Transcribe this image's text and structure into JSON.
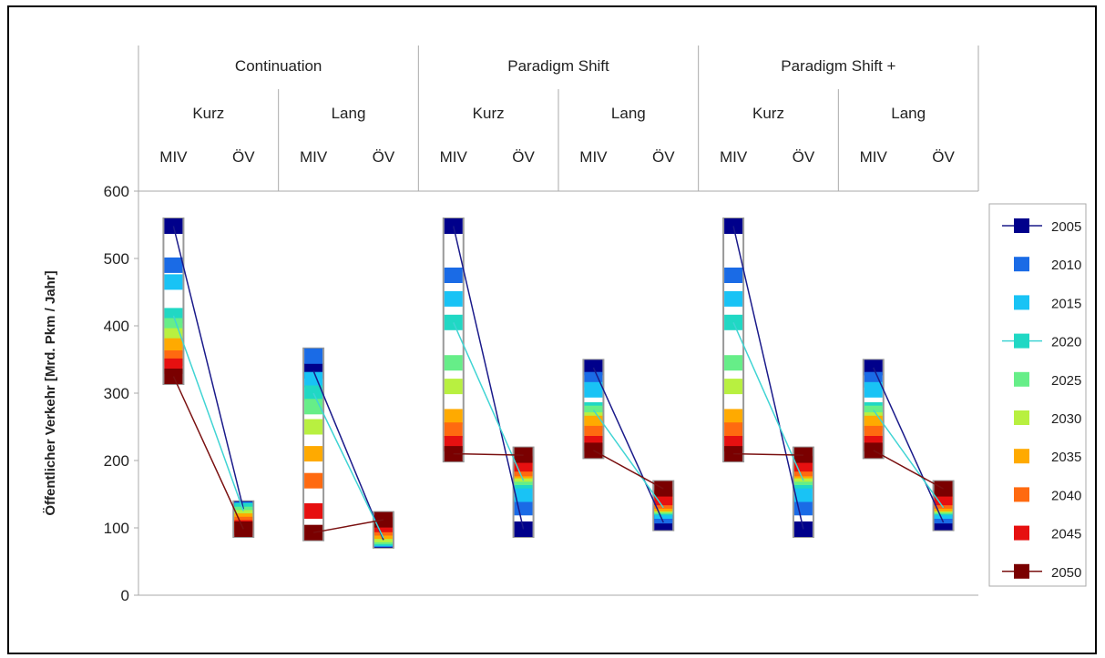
{
  "chart_data": {
    "type": "range-column",
    "title": "",
    "ylabel": "Öffentlicher Verkehr [Mrd. Pkm / Jahr]",
    "ylim": [
      0,
      600
    ],
    "yticks": [
      0,
      100,
      200,
      300,
      400,
      500,
      600
    ],
    "grid": false,
    "legend_position": "right",
    "scenarios": [
      "Continuation",
      "Paradigm Shift",
      "Paradigm Shift +"
    ],
    "horizons": [
      "Kurz",
      "Lang"
    ],
    "modes": [
      "MIV",
      "ÖV"
    ],
    "years": [
      "2005",
      "2010",
      "2015",
      "2020",
      "2025",
      "2030",
      "2035",
      "2040",
      "2045",
      "2050"
    ],
    "year_colors": [
      "#00008b",
      "#1a6be6",
      "#19c3f5",
      "#20d8c4",
      "#66ee88",
      "#b8f040",
      "#ffaa00",
      "#ff6a10",
      "#e61010",
      "#7a0000"
    ],
    "linked_years": [
      {
        "year": "2005",
        "color": "#1a1a8a"
      },
      {
        "year": "2020",
        "color": "#40d4d4"
      },
      {
        "year": "2050",
        "color": "#7a1010"
      }
    ],
    "groups": [
      {
        "scenario": "Continuation",
        "horizon": "Kurz",
        "MIV": [
          548,
          490,
          465,
          415,
          400,
          385,
          370,
          352,
          340,
          325
        ],
        "ÖV": [
          128,
          127,
          126,
          125,
          120,
          115,
          110,
          105,
          100,
          98
        ]
      },
      {
        "scenario": "Continuation",
        "horizon": "Lang",
        "MIV": [
          333,
          355,
          320,
          300,
          280,
          250,
          210,
          170,
          125,
          93
        ],
        "ÖV": [
          82,
          83,
          84,
          85,
          87,
          90,
          95,
          100,
          105,
          112
        ]
      },
      {
        "scenario": "Paradigm Shift",
        "horizon": "Kurz",
        "MIV": [
          548,
          475,
          440,
          405,
          345,
          310,
          265,
          245,
          225,
          210
        ],
        "ÖV": [
          98,
          130,
          150,
          170,
          175,
          180,
          185,
          188,
          195,
          208
        ]
      },
      {
        "scenario": "Paradigm Shift",
        "horizon": "Lang",
        "MIV": [
          338,
          320,
          305,
          275,
          270,
          260,
          255,
          240,
          225,
          215
        ],
        "ÖV": [
          108,
          118,
          125,
          130,
          132,
          134,
          136,
          140,
          145,
          158
        ]
      },
      {
        "scenario": "Paradigm Shift +",
        "horizon": "Kurz",
        "MIV": [
          548,
          475,
          440,
          405,
          345,
          310,
          265,
          245,
          225,
          210
        ],
        "ÖV": [
          98,
          130,
          150,
          170,
          175,
          180,
          185,
          188,
          195,
          208
        ]
      },
      {
        "scenario": "Paradigm Shift +",
        "horizon": "Lang",
        "MIV": [
          338,
          320,
          305,
          275,
          270,
          260,
          255,
          240,
          225,
          215
        ],
        "ÖV": [
          108,
          118,
          125,
          130,
          132,
          134,
          136,
          140,
          145,
          158
        ]
      }
    ]
  }
}
